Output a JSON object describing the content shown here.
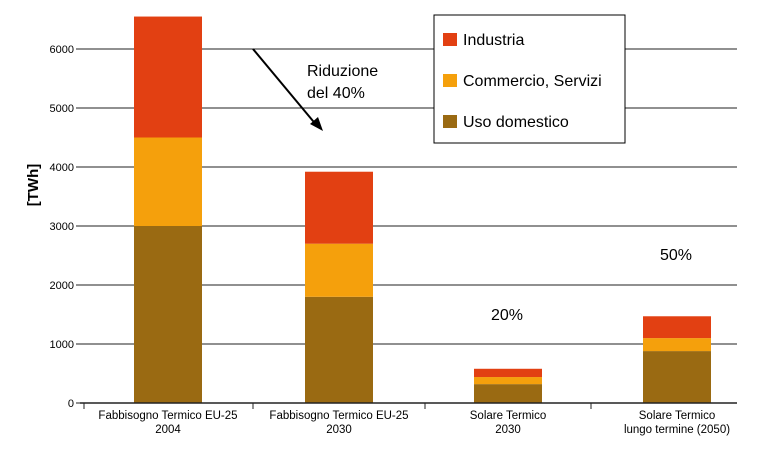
{
  "chart_data": {
    "type": "bar",
    "stacked": true,
    "title": "",
    "xlabel": "",
    "ylabel": "[TWh]",
    "ylim": [
      0,
      6600
    ],
    "yticks": [
      0,
      1000,
      2000,
      3000,
      4000,
      5000,
      6000
    ],
    "grid": true,
    "legend_position": "top-right",
    "categories": [
      [
        "Fabbisogno Termico  EU-25",
        "2004"
      ],
      [
        "Fabbisogno Termico EU-25",
        "2030"
      ],
      [
        "Solare Termico",
        "2030"
      ],
      [
        "Solare Termico",
        "lungo termine (2050)"
      ]
    ],
    "series": [
      {
        "name": "Uso domestico",
        "color": "#9a6a12",
        "values": [
          3000,
          1800,
          320,
          880
        ]
      },
      {
        "name": "Commercio, Servizi",
        "color": "#f5a00c",
        "values": [
          1500,
          900,
          120,
          220
        ]
      },
      {
        "name": "Industria",
        "color": "#e24012",
        "values": [
          2050,
          1220,
          140,
          370
        ]
      }
    ],
    "legend_order": [
      "Industria",
      "Commercio, Servizi",
      "Uso domestico"
    ],
    "annotations": {
      "reduction_line1": "Riduzione",
      "reduction_line2": "del 40%",
      "solar_2030_share": "20%",
      "solar_2050_share": "50%"
    }
  }
}
